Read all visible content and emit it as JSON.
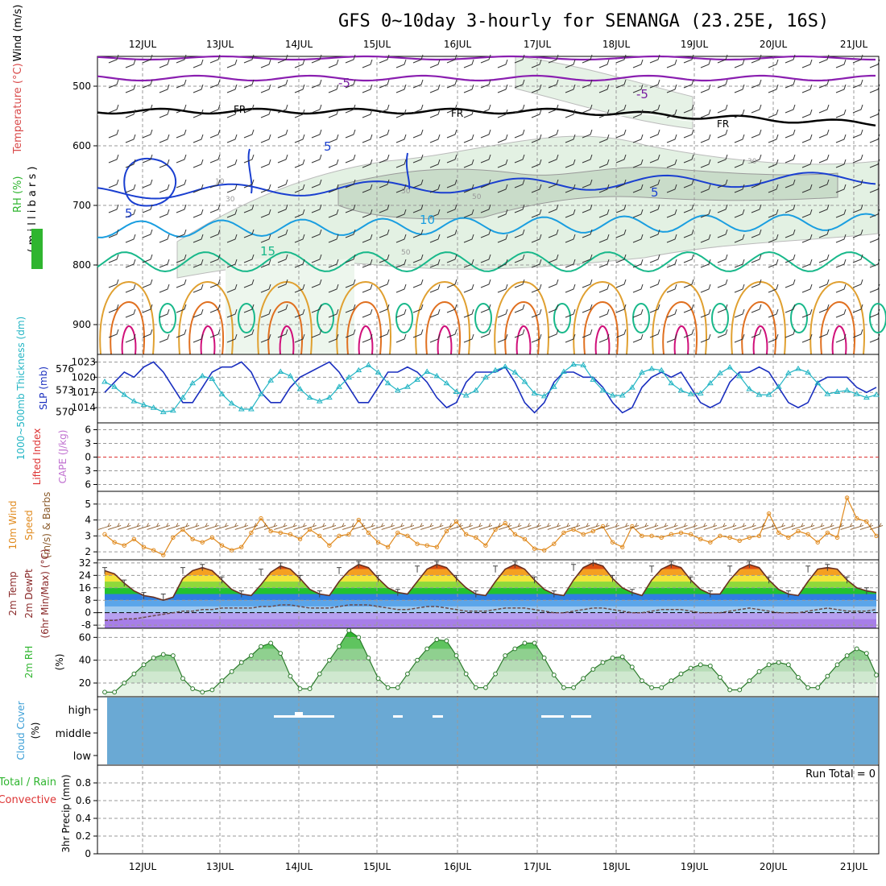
{
  "title": "GFS 0~10day 3-hourly for SENANGA (23.25E, 16S)",
  "dates": [
    "12JUL",
    "13JUL",
    "14JUL",
    "15JUL",
    "16JUL",
    "17JUL",
    "18JUL",
    "19JUL",
    "20JUL",
    "21JUL"
  ],
  "run_total_label": "Run Total = 0",
  "labels": {
    "wind": "Wind (m/s)",
    "temperature": "Temperature (°C)",
    "rh": "RH (%)",
    "millibars": "( m i l l i b a r s )",
    "thickness": "1000~500mb Thickness (dm)",
    "slp": "SLP (mb)",
    "lifted": "Lifted Index",
    "cape": "CAPE (J/kg)",
    "wind10_a": "10m Wind",
    "wind10_b": "Speed",
    "wind10_c": "(m/s) & Barbs",
    "t2_a": "2m Temp",
    "t2_b": "2m DewPt",
    "t2_c": "(6hr Min/Max) (°C)",
    "rh2_a": "2m RH",
    "rh2_b": "(%)",
    "cloud_a": "Cloud Cover",
    "cloud_b": "(%)",
    "precip_a": "Total / Rain",
    "precip_b": "Convective",
    "precip_c": "3hr Precip (mm)",
    "contour_fr": "FR",
    "contour_m5": "-5",
    "contour_5": "5",
    "contour_10": "10",
    "contour_15": "15",
    "rh_30": "30",
    "rh_50": "50",
    "rh_10": "10"
  },
  "colors": {
    "slp": "#1a2fbf",
    "thickness": "#23b5c4",
    "wind10": "#e08a1e",
    "cloud": "#6aa9d4",
    "rh2": "#2fb52f",
    "lifted": "#dd3333"
  },
  "chart_data": [
    {
      "type": "line",
      "name": "upper-air",
      "ylabel": "millibars",
      "y_ticks": [
        500,
        600,
        700,
        800,
        900
      ],
      "ylim": [
        450,
        950
      ],
      "contour_levels_temp": [
        -5,
        0,
        5,
        10,
        15
      ],
      "contour_levels_rh": [
        10,
        30,
        50
      ]
    },
    {
      "type": "line",
      "name": "slp-thickness",
      "y_ticks_slp": [
        1014,
        1017,
        1020,
        1023
      ],
      "y_ticks_thickness": [
        570,
        573,
        576
      ],
      "x_hours": [
        0,
        3,
        6,
        9,
        12,
        15,
        18,
        21,
        24,
        27,
        30,
        33,
        36,
        39,
        42,
        45,
        48,
        51,
        54,
        57,
        60,
        63,
        66,
        69,
        72,
        75,
        78,
        81,
        84,
        87,
        90,
        93,
        96,
        99,
        102,
        105,
        108,
        111,
        114,
        117,
        120,
        123,
        126,
        129,
        132,
        135,
        138,
        141,
        144,
        147,
        150,
        153,
        156,
        159,
        162,
        165,
        168,
        171,
        174,
        177,
        180,
        183,
        186,
        189,
        192,
        195,
        198,
        201,
        204,
        207,
        210,
        213,
        216,
        219,
        222,
        225,
        228,
        231,
        234,
        237
      ],
      "slp": [
        1017,
        1019,
        1021,
        1020,
        1022,
        1023,
        1021,
        1018,
        1015,
        1015,
        1018,
        1021,
        1022,
        1022,
        1023,
        1021,
        1017,
        1015,
        1015,
        1018,
        1020,
        1021,
        1022,
        1023,
        1021,
        1018,
        1015,
        1015,
        1018,
        1021,
        1021,
        1022,
        1021,
        1019,
        1016,
        1014,
        1015,
        1019,
        1021,
        1021,
        1021,
        1022,
        1019,
        1015,
        1013,
        1015,
        1019,
        1021,
        1021,
        1020,
        1020,
        1018,
        1015,
        1013,
        1014,
        1018,
        1020,
        1021,
        1020,
        1021,
        1018,
        1015,
        1014,
        1015,
        1019,
        1021,
        1021,
        1022,
        1021,
        1018,
        1015,
        1014,
        1015,
        1019,
        1020,
        1020,
        1020,
        1018,
        1017,
        1018
      ],
      "thickness": [
        574.2,
        573.5,
        572.4,
        571.5,
        571.0,
        570.6,
        570.0,
        570.2,
        572.0,
        574.0,
        575.0,
        574.6,
        572.5,
        571.2,
        570.4,
        570.4,
        572.5,
        574.4,
        575.6,
        575.0,
        573.2,
        572.0,
        571.5,
        572.0,
        573.5,
        574.8,
        575.8,
        576.5,
        575.5,
        574.0,
        573.0,
        573.5,
        574.5,
        575.6,
        575.0,
        574.0,
        572.8,
        572.3,
        573.0,
        574.8,
        575.8,
        576.3,
        575.5,
        574.2,
        572.6,
        572.2,
        573.5,
        575.6,
        576.6,
        576.5,
        574.5,
        573.0,
        572.3,
        572.3,
        573.4,
        575.5,
        576.0,
        575.8,
        574.0,
        573.0,
        572.5,
        572.6,
        574.0,
        575.4,
        576.2,
        575.0,
        573.2,
        572.4,
        572.4,
        573.5,
        575.4,
        576.0,
        575.5,
        574.0,
        572.5,
        572.8,
        573.0,
        572.5,
        572.0,
        572.4
      ]
    },
    {
      "type": "line",
      "name": "lifted-index-cape",
      "y_ticks": [
        -6,
        -3,
        0,
        3,
        6
      ],
      "lifted_index": [],
      "cape": []
    },
    {
      "type": "line",
      "name": "10m-wind",
      "y_ticks": [
        2,
        3,
        4,
        5
      ],
      "speed": [
        3.1,
        2.6,
        2.4,
        2.8,
        2.3,
        2.1,
        1.8,
        2.9,
        3.4,
        2.8,
        2.6,
        2.9,
        2.4,
        2.1,
        2.3,
        3.2,
        4.1,
        3.3,
        3.2,
        3.1,
        2.8,
        3.4,
        3.0,
        2.4,
        3.0,
        3.1,
        4.0,
        3.2,
        2.6,
        2.3,
        3.2,
        3.0,
        2.5,
        2.4,
        2.3,
        3.3,
        3.9,
        3.1,
        2.9,
        2.4,
        3.4,
        3.8,
        3.1,
        2.8,
        2.2,
        2.1,
        2.5,
        3.2,
        3.4,
        3.1,
        3.3,
        3.6,
        2.6,
        2.3,
        3.6,
        3.0,
        3.0,
        2.9,
        3.1,
        3.2,
        3.1,
        2.8,
        2.6,
        3.0,
        2.9,
        2.7,
        2.9,
        3.0,
        4.4,
        3.2,
        2.9,
        3.3,
        3.1,
        2.6,
        3.2,
        2.9,
        5.4,
        4.1,
        3.9,
        3.0
      ],
      "ylim": [
        1.5,
        5.8
      ]
    },
    {
      "type": "area",
      "name": "2m-temp",
      "y_ticks": [
        -8,
        0,
        8,
        16,
        24,
        32
      ],
      "temp": [
        27,
        25,
        19,
        14,
        11,
        10,
        8,
        10,
        22,
        27,
        29,
        27,
        21,
        15,
        12,
        11,
        18,
        26,
        30,
        28,
        22,
        15,
        12,
        11,
        20,
        27,
        31,
        29,
        22,
        16,
        13,
        12,
        20,
        28,
        31,
        29,
        22,
        16,
        12,
        11,
        20,
        28,
        31,
        28,
        21,
        15,
        12,
        11,
        21,
        29,
        32,
        30,
        22,
        16,
        13,
        11,
        21,
        28,
        31,
        29,
        21,
        15,
        12,
        12,
        21,
        28,
        31,
        29,
        21,
        15,
        12,
        11,
        20,
        28,
        29,
        28,
        21,
        16,
        14,
        13
      ],
      "dewpoint": [
        -5,
        -5,
        -4,
        -4,
        -3,
        -2,
        -1,
        0,
        1,
        1,
        2,
        2,
        3,
        3,
        3,
        3,
        4,
        4,
        5,
        5,
        4,
        3,
        3,
        3,
        4,
        5,
        5,
        5,
        4,
        3,
        2,
        2,
        3,
        4,
        4,
        3,
        2,
        1,
        1,
        1,
        2,
        3,
        3,
        3,
        2,
        1,
        0,
        0,
        1,
        2,
        3,
        3,
        2,
        1,
        0,
        0,
        1,
        2,
        2,
        2,
        1,
        0,
        0,
        0,
        1,
        2,
        3,
        2,
        1,
        0,
        0,
        0,
        1,
        2,
        3,
        2,
        1,
        1,
        1,
        2
      ],
      "ylim": [
        -10,
        34
      ]
    },
    {
      "type": "area",
      "name": "2m-rh",
      "y_ticks": [
        20,
        40,
        60
      ],
      "rh": [
        12,
        12,
        20,
        28,
        36,
        42,
        45,
        44,
        24,
        15,
        12,
        14,
        22,
        30,
        38,
        44,
        52,
        55,
        46,
        26,
        15,
        15,
        28,
        40,
        52,
        66,
        60,
        42,
        24,
        16,
        16,
        28,
        40,
        50,
        58,
        57,
        44,
        28,
        16,
        16,
        28,
        44,
        50,
        55,
        55,
        42,
        27,
        16,
        16,
        24,
        32,
        38,
        42,
        43,
        34,
        22,
        16,
        16,
        22,
        28,
        33,
        36,
        35,
        25,
        14,
        14,
        22,
        30,
        36,
        38,
        36,
        25,
        16,
        16,
        26,
        36,
        44,
        50,
        46,
        27
      ],
      "ylim": [
        8,
        68
      ]
    },
    {
      "type": "area",
      "name": "cloud-cover",
      "y_ticks_labels": [
        "low",
        "middle",
        "high"
      ],
      "high": [],
      "middle": [],
      "low": []
    },
    {
      "type": "bar",
      "name": "3hr-precip",
      "y_ticks": [
        0,
        0.2,
        0.4,
        0.6,
        0.8
      ],
      "total": [],
      "convective": [],
      "ylim": [
        0,
        1
      ]
    }
  ]
}
